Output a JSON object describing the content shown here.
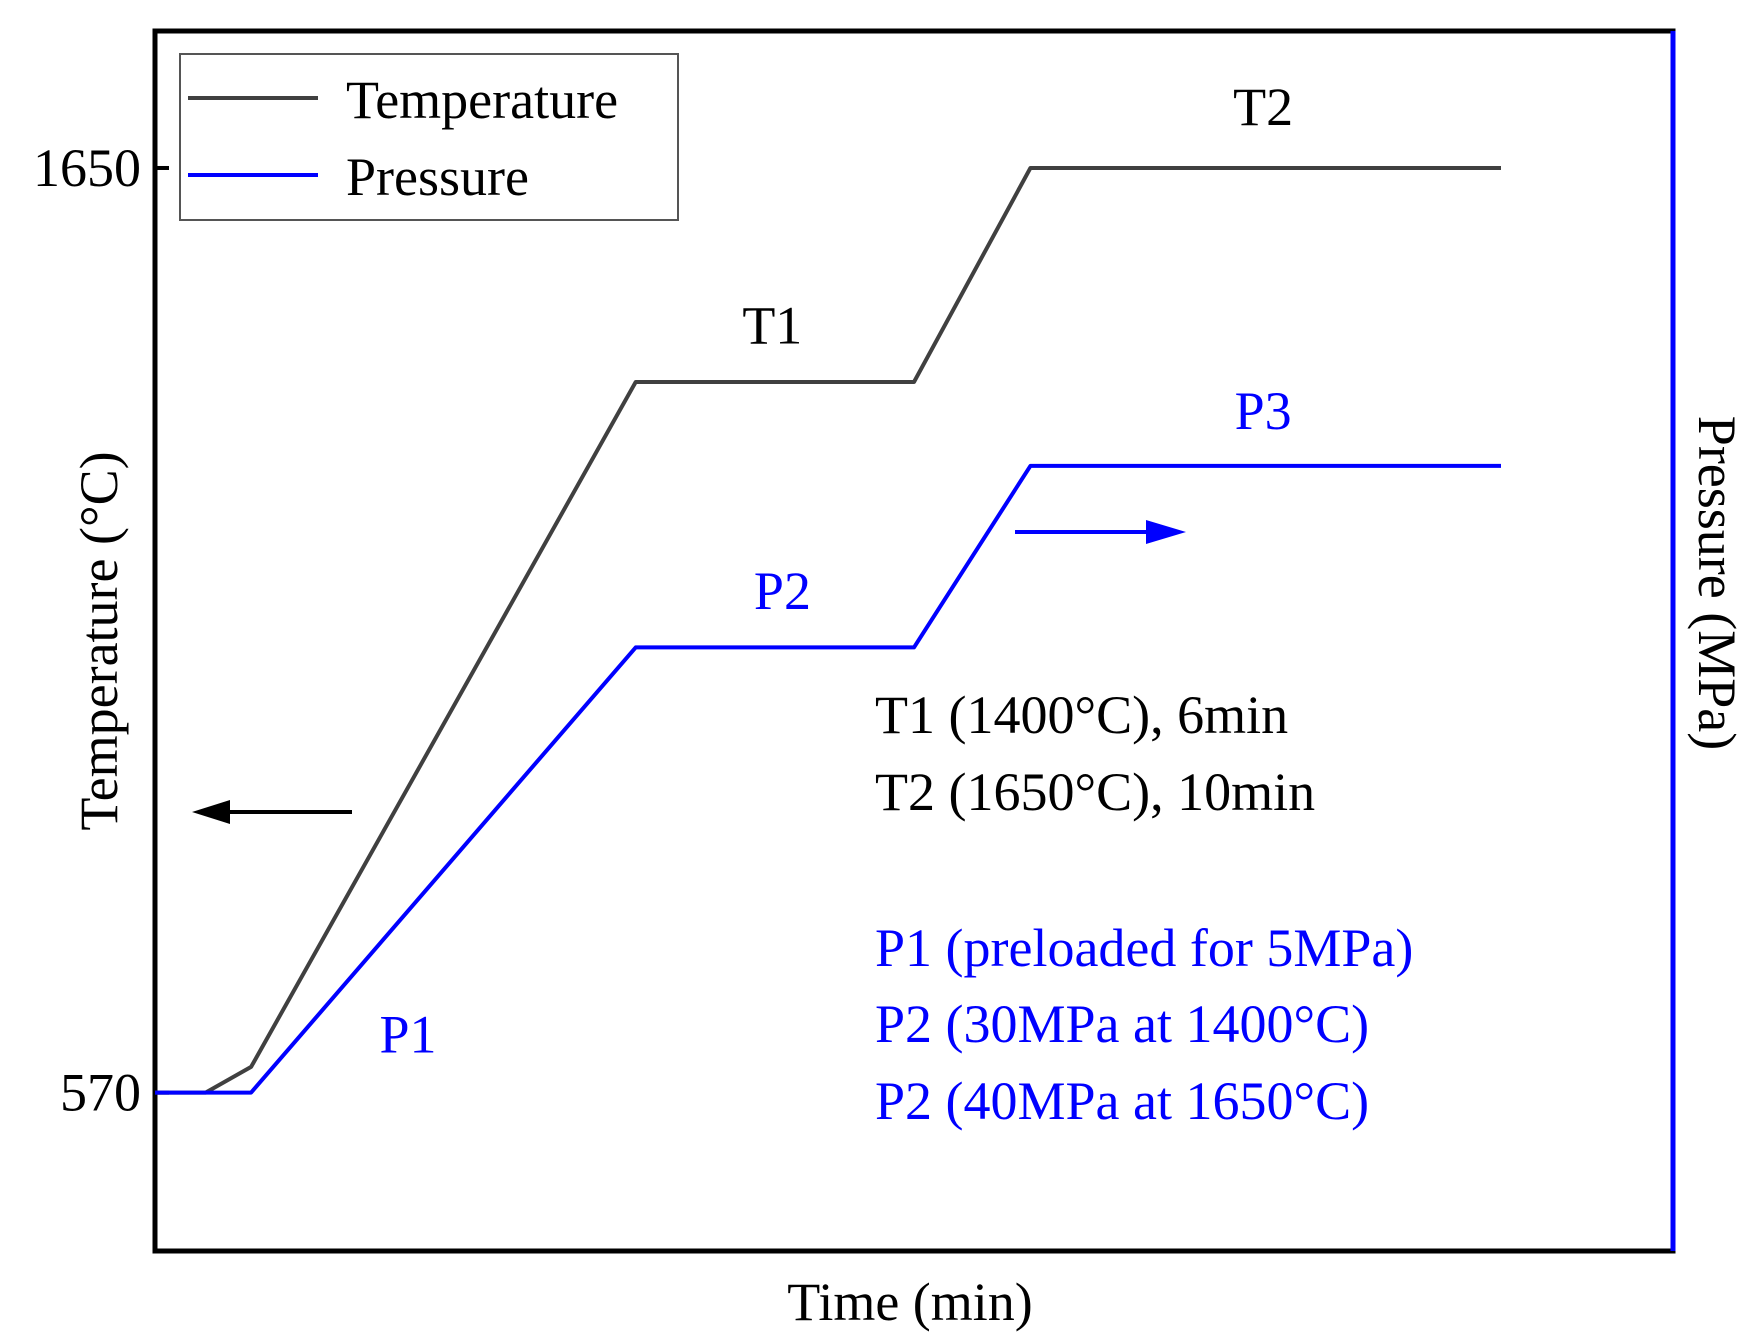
{
  "chart_data": {
    "type": "line",
    "title": "",
    "xlabel": "Time (min)",
    "ylabel": "Temperature (°C)",
    "y2label": "Pressure (MPa)",
    "ylim": [
      385,
      1810
    ],
    "xlim": [
      0,
      30
    ],
    "yticks": [
      570,
      1650
    ],
    "ytick_labels": [
      "570",
      "1650"
    ],
    "legend": {
      "placement": "top-left",
      "entries": [
        {
          "label": "Temperature",
          "color": "#404040"
        },
        {
          "label": "Pressure",
          "color": "#0000ff"
        }
      ]
    },
    "series": [
      {
        "name": "Temperature",
        "axis": "left",
        "color": "#404040",
        "x": [
          0,
          1,
          1.9,
          9.5,
          15.0,
          17.3,
          26.6
        ],
        "y": [
          570,
          570,
          600,
          1400,
          1400,
          1650,
          1650
        ]
      },
      {
        "name": "Pressure",
        "axis": "right",
        "color": "#0000ff",
        "x": [
          0,
          1.9,
          9.5,
          15.0,
          17.3,
          26.6
        ],
        "y": [
          570,
          570,
          1090,
          1090,
          1302,
          1302
        ]
      }
    ],
    "annotations": {
      "segment_labels": [
        {
          "text": "T1",
          "x": 12.2,
          "y": 1445,
          "color": "#000000"
        },
        {
          "text": "T2",
          "x": 21.9,
          "y": 1700,
          "color": "#000000"
        },
        {
          "text": "P1",
          "x": 5.0,
          "y": 617,
          "color": "#0000ff"
        },
        {
          "text": "P2",
          "x": 12.4,
          "y": 1135,
          "color": "#0000ff"
        },
        {
          "text": "P3",
          "x": 21.9,
          "y": 1345,
          "color": "#0000ff"
        }
      ],
      "notes_black": [
        "T1 (1400°C), 6min",
        "T2 (1650°C), 10min"
      ],
      "notes_blue": [
        "P1 (preloaded for 5MPa)",
        "P2 (30MPa at 1400°C)",
        "P2 (40MPa at 1650°C)"
      ],
      "axis_arrows": [
        {
          "series": "Temperature",
          "direction": "left",
          "color": "#000000"
        },
        {
          "series": "Pressure",
          "direction": "right",
          "color": "#0000ff"
        }
      ]
    }
  }
}
